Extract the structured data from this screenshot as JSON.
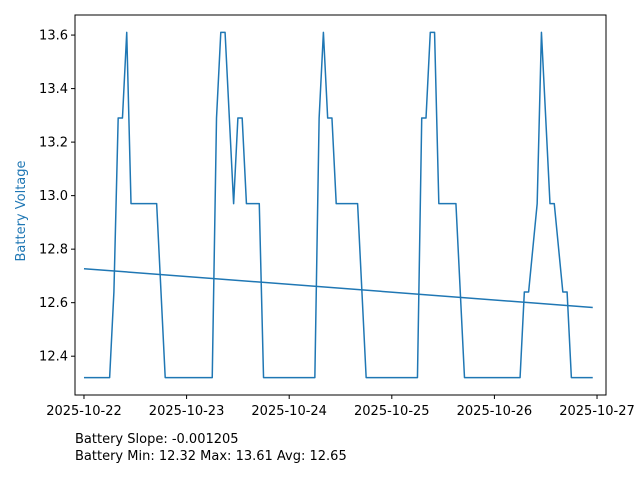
{
  "chart_data": {
    "type": "line",
    "xlabel": "",
    "ylabel": "Battery Voltage",
    "x_ticks": [
      "2025-10-22",
      "2025-10-23",
      "2025-10-24",
      "2025-10-25",
      "2025-10-26",
      "2025-10-27"
    ],
    "y_ticks": [
      "12.4",
      "12.6",
      "12.8",
      "13.0",
      "13.2",
      "13.4",
      "13.6"
    ],
    "xlim": [
      "2025-10-21 21:54",
      "2025-10-27 02:06"
    ],
    "ylim": [
      12.255,
      13.675
    ],
    "grid": false,
    "series": [
      {
        "color": "#1f77b4",
        "x": [
          "2025-10-22 00:00",
          "2025-10-22 06:00",
          "2025-10-22 07:00",
          "2025-10-22 08:00",
          "2025-10-22 09:00",
          "2025-10-22 10:00",
          "2025-10-22 11:00",
          "2025-10-22 17:00",
          "2025-10-22 19:00",
          "2025-10-23 06:00",
          "2025-10-23 07:00",
          "2025-10-23 08:00",
          "2025-10-23 09:00",
          "2025-10-23 11:00",
          "2025-10-23 12:00",
          "2025-10-23 13:00",
          "2025-10-23 14:00",
          "2025-10-23 17:00",
          "2025-10-23 18:00",
          "2025-10-24 06:00",
          "2025-10-24 07:00",
          "2025-10-24 08:00",
          "2025-10-24 09:00",
          "2025-10-24 10:00",
          "2025-10-24 11:00",
          "2025-10-24 16:00",
          "2025-10-24 18:00",
          "2025-10-25 06:00",
          "2025-10-25 07:00",
          "2025-10-25 08:00",
          "2025-10-25 09:00",
          "2025-10-25 10:00",
          "2025-10-25 11:00",
          "2025-10-25 15:00",
          "2025-10-25 17:00",
          "2025-10-26 06:00",
          "2025-10-26 07:00",
          "2025-10-26 08:00",
          "2025-10-26 10:00",
          "2025-10-26 11:00",
          "2025-10-26 12:00",
          "2025-10-26 13:00",
          "2025-10-26 14:00",
          "2025-10-26 16:00",
          "2025-10-26 17:00",
          "2025-10-26 18:00",
          "2025-10-26 23:00"
        ],
        "values": [
          12.32,
          12.32,
          12.64,
          13.29,
          13.29,
          13.61,
          12.97,
          12.97,
          12.32,
          12.32,
          13.29,
          13.61,
          13.61,
          12.97,
          13.29,
          13.29,
          12.97,
          12.97,
          12.32,
          12.32,
          13.29,
          13.61,
          13.29,
          13.29,
          12.97,
          12.97,
          12.32,
          12.32,
          13.29,
          13.29,
          13.61,
          13.61,
          12.97,
          12.97,
          12.32,
          12.32,
          12.64,
          12.64,
          12.97,
          13.61,
          13.29,
          12.97,
          12.97,
          12.64,
          12.64,
          12.32,
          12.32
        ]
      },
      {
        "color": "#1f77b4",
        "x": [
          "2025-10-22 00:00",
          "2025-10-26 23:00"
        ],
        "values": [
          12.727,
          12.582
        ]
      }
    ],
    "annotations": [
      "Battery Slope: -0.001205",
      "Battery Min: 12.32 Max: 13.61 Avg: 12.65"
    ]
  }
}
